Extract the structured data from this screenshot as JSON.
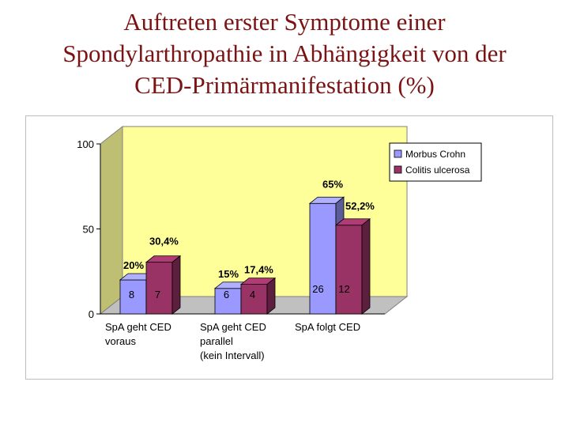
{
  "title_lines": [
    "Auftreten erster Symptome einer",
    "Spondylarthropathie in Abhängigkeit von der",
    "CED-Primärmanifestation (%)"
  ],
  "chart_data": {
    "type": "bar",
    "title": "",
    "xlabel": "",
    "ylabel": "",
    "ylim": [
      0,
      100
    ],
    "yticks": [
      "0",
      "50",
      "100"
    ],
    "categories": [
      [
        "SpA geht CED",
        "voraus"
      ],
      [
        "SpA geht CED",
        "parallel",
        " (kein Intervall)"
      ],
      [
        "SpA folgt CED"
      ]
    ],
    "series": [
      {
        "name": "Morbus Crohn",
        "values": [
          20,
          15,
          65
        ],
        "value_labels": [
          "20%",
          "15%",
          "65%"
        ],
        "count_labels": [
          "8",
          "6",
          "26"
        ],
        "color": "#9999ff"
      },
      {
        "name": "Colitis ulcerosa",
        "values": [
          30.4,
          17.4,
          52.2
        ],
        "value_labels": [
          "30,4%",
          "17,4%",
          "52,2%"
        ],
        "count_labels": [
          "7",
          "4",
          "12"
        ],
        "color": "#993366"
      }
    ],
    "plot_background": "#ffff99",
    "legend_position": "right",
    "three_d": true
  }
}
